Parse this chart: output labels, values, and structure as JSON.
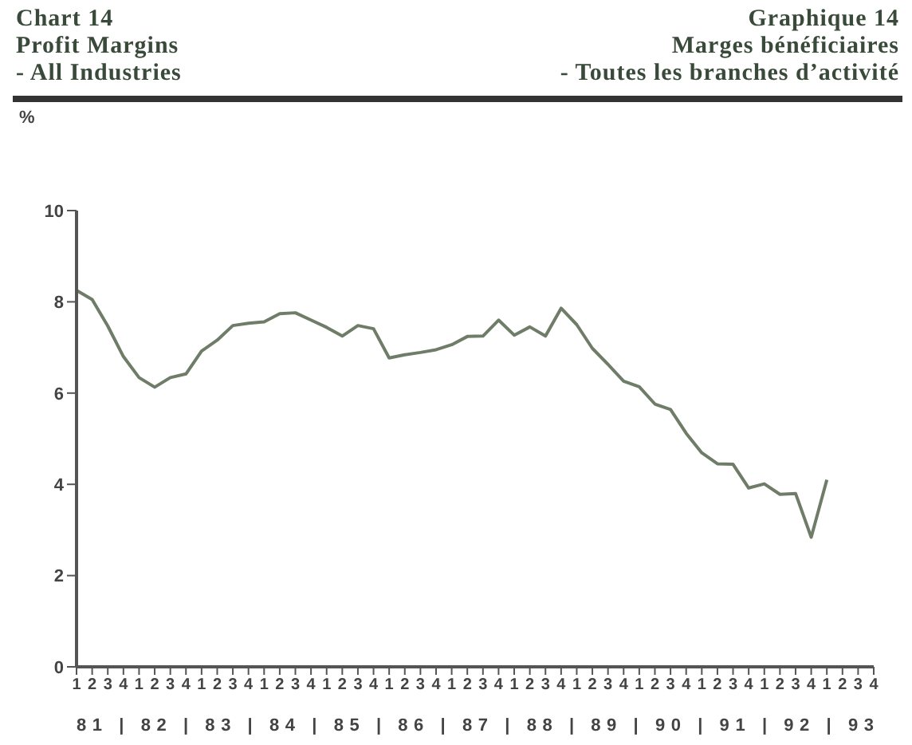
{
  "chart_data": {
    "type": "line",
    "title": "Chart 14\nProfit Margins\n- All Industries",
    "subtitle": "Graphique  14\nMarges bénéficiaires\n- Toutes les branches d’activité",
    "ylabel": "%",
    "categories": [
      "1",
      "2",
      "3",
      "4",
      "1",
      "2",
      "3",
      "4",
      "1",
      "2",
      "3",
      "4",
      "1",
      "2",
      "3",
      "4",
      "1",
      "2",
      "3",
      "4",
      "1",
      "2",
      "3",
      "4",
      "1",
      "2",
      "3",
      "4",
      "1",
      "2",
      "3",
      "4",
      "1",
      "2",
      "3",
      "4",
      "1",
      "2",
      "3",
      "4",
      "1",
      "2",
      "3",
      "4",
      "1",
      "2",
      "3",
      "4",
      "1",
      "2",
      "3",
      "4"
    ],
    "series": [
      {
        "color": "#6f7d68",
        "values": [
          8.25,
          8.05,
          7.47,
          6.8,
          6.34,
          6.13,
          6.34,
          6.42,
          6.92,
          7.16,
          7.48,
          7.53,
          7.56,
          7.74,
          7.76,
          7.6,
          7.44,
          7.25,
          7.48,
          7.41,
          6.77,
          6.84,
          6.89,
          6.95,
          7.06,
          7.24,
          7.25,
          7.6,
          7.27,
          7.45,
          7.25,
          7.86,
          7.5,
          6.98,
          6.63,
          6.26,
          6.14,
          5.76,
          5.64,
          5.12,
          4.69,
          4.45,
          4.44,
          3.92,
          4.01,
          3.78,
          3.8,
          2.84,
          4.1,
          null,
          null,
          null
        ]
      }
    ],
    "annotations": [
      "81  |  82  |  83  |  84  |  85  |  86  |  87  |  88  |  89  |  90  |  91  |  92  |  93"
    ],
    "ylim": [
      0,
      10
    ],
    "yticks": [
      0,
      2,
      4,
      6,
      8,
      10
    ],
    "grid": false,
    "legend": false,
    "marker": "none",
    "line_style": "solid"
  }
}
